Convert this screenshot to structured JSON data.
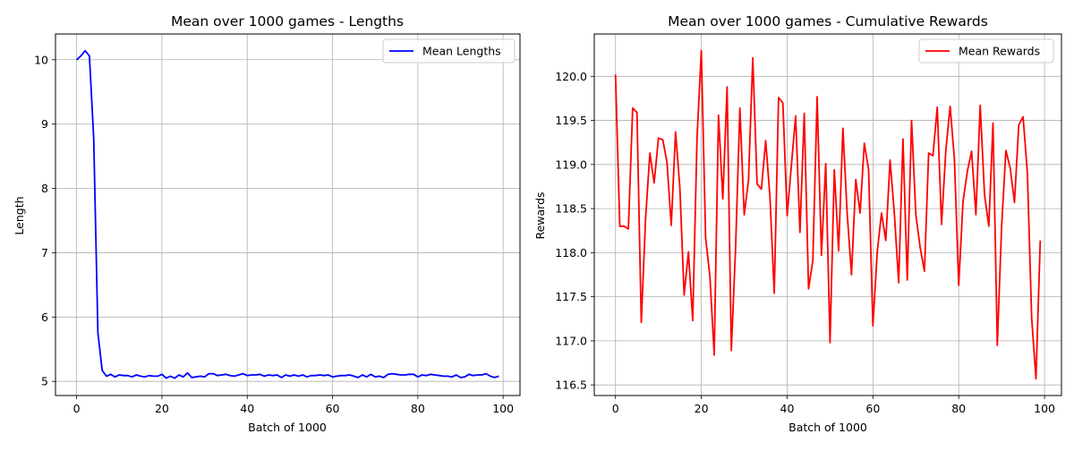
{
  "chart_data": [
    {
      "type": "line",
      "title": "Mean over 1000 games - Lengths",
      "xlabel": "Batch of 1000",
      "ylabel": "Length",
      "xlim": [
        -4.95,
        103.95
      ],
      "ylim": [
        4.78,
        10.4
      ],
      "xticks": [
        0,
        20,
        40,
        60,
        80,
        100
      ],
      "yticks": [
        5,
        6,
        7,
        8,
        9,
        10
      ],
      "grid": true,
      "legend": "top-right",
      "color": "#0000ff",
      "series": [
        {
          "name": "Mean Lengths",
          "x": [
            0,
            1,
            2,
            3,
            4,
            5,
            6,
            7,
            8,
            9,
            10,
            11,
            12,
            13,
            14,
            15,
            16,
            17,
            18,
            19,
            20,
            21,
            22,
            23,
            24,
            25,
            26,
            27,
            28,
            29,
            30,
            31,
            32,
            33,
            34,
            35,
            36,
            37,
            38,
            39,
            40,
            41,
            42,
            43,
            44,
            45,
            46,
            47,
            48,
            49,
            50,
            51,
            52,
            53,
            54,
            55,
            56,
            57,
            58,
            59,
            60,
            61,
            62,
            63,
            64,
            65,
            66,
            67,
            68,
            69,
            70,
            71,
            72,
            73,
            74,
            75,
            76,
            77,
            78,
            79,
            80,
            81,
            82,
            83,
            84,
            85,
            86,
            87,
            88,
            89,
            90,
            91,
            92,
            93,
            94,
            95,
            96,
            97,
            98,
            99
          ],
          "values": [
            10.0,
            10.06,
            10.14,
            10.06,
            8.78,
            5.75,
            5.17,
            5.08,
            5.11,
            5.07,
            5.1,
            5.09,
            5.09,
            5.07,
            5.1,
            5.08,
            5.07,
            5.09,
            5.08,
            5.08,
            5.11,
            5.05,
            5.08,
            5.05,
            5.1,
            5.07,
            5.13,
            5.06,
            5.07,
            5.08,
            5.07,
            5.12,
            5.12,
            5.09,
            5.1,
            5.11,
            5.09,
            5.08,
            5.1,
            5.12,
            5.09,
            5.1,
            5.1,
            5.11,
            5.08,
            5.1,
            5.09,
            5.1,
            5.06,
            5.1,
            5.08,
            5.1,
            5.08,
            5.1,
            5.07,
            5.09,
            5.09,
            5.1,
            5.09,
            5.1,
            5.07,
            5.08,
            5.09,
            5.09,
            5.1,
            5.08,
            5.06,
            5.1,
            5.07,
            5.11,
            5.07,
            5.08,
            5.06,
            5.11,
            5.12,
            5.11,
            5.1,
            5.1,
            5.11,
            5.11,
            5.07,
            5.1,
            5.09,
            5.11,
            5.1,
            5.09,
            5.08,
            5.08,
            5.07,
            5.1,
            5.06,
            5.07,
            5.11,
            5.09,
            5.1,
            5.1,
            5.12,
            5.08,
            5.06,
            5.08
          ]
        }
      ]
    },
    {
      "type": "line",
      "title": "Mean over 1000 games - Cumulative Rewards",
      "xlabel": "Batch of 1000",
      "ylabel": "Rewards",
      "xlim": [
        -4.95,
        103.95
      ],
      "ylim": [
        116.38,
        120.48
      ],
      "xticks": [
        0,
        20,
        40,
        60,
        80,
        100
      ],
      "yticks": [
        116.5,
        117.0,
        117.5,
        118.0,
        118.5,
        119.0,
        119.5,
        120.0
      ],
      "ytick_labels": [
        "116.5",
        "117.0",
        "117.5",
        "118.0",
        "118.5",
        "119.0",
        "119.5",
        "120.0"
      ],
      "grid": true,
      "legend": "top-right",
      "color": "#ff0000",
      "series": [
        {
          "name": "Mean Rewards",
          "x": [
            0,
            1,
            2,
            3,
            4,
            5,
            6,
            7,
            8,
            9,
            10,
            11,
            12,
            13,
            14,
            15,
            16,
            17,
            18,
            19,
            20,
            21,
            22,
            23,
            24,
            25,
            26,
            27,
            28,
            29,
            30,
            31,
            32,
            33,
            34,
            35,
            36,
            37,
            38,
            39,
            40,
            41,
            42,
            43,
            44,
            45,
            46,
            47,
            48,
            49,
            50,
            51,
            52,
            53,
            54,
            55,
            56,
            57,
            58,
            59,
            60,
            61,
            62,
            63,
            64,
            65,
            66,
            67,
            68,
            69,
            70,
            71,
            72,
            73,
            74,
            75,
            76,
            77,
            78,
            79,
            80,
            81,
            82,
            83,
            84,
            85,
            86,
            87,
            88,
            89,
            90,
            91,
            92,
            93,
            94,
            95,
            96,
            97,
            98,
            99
          ],
          "values": [
            120.02,
            118.3,
            118.3,
            118.27,
            119.64,
            119.59,
            117.21,
            118.38,
            119.13,
            118.79,
            119.3,
            119.28,
            119.03,
            118.31,
            119.37,
            118.74,
            117.52,
            118.01,
            117.23,
            119.3,
            120.29,
            118.17,
            117.73,
            116.84,
            119.56,
            118.61,
            119.88,
            116.89,
            118.06,
            119.64,
            118.43,
            118.82,
            120.21,
            118.78,
            118.72,
            119.27,
            118.63,
            117.54,
            119.76,
            119.7,
            118.42,
            119.0,
            119.55,
            118.23,
            119.58,
            117.59,
            117.91,
            119.77,
            117.97,
            119.01,
            116.98,
            118.94,
            118.02,
            119.41,
            118.44,
            117.75,
            118.83,
            118.45,
            119.24,
            118.94,
            117.17,
            118.0,
            118.45,
            118.14,
            119.05,
            118.44,
            117.66,
            119.29,
            117.69,
            119.5,
            118.43,
            118.06,
            117.79,
            119.13,
            119.1,
            119.65,
            118.32,
            119.16,
            119.66,
            119.06,
            117.63,
            118.58,
            118.92,
            119.15,
            118.43,
            119.67,
            118.66,
            118.3,
            119.47,
            116.95,
            118.29,
            119.16,
            118.96,
            118.57,
            119.45,
            119.54,
            118.91,
            117.26,
            116.57,
            118.14
          ]
        }
      ]
    }
  ]
}
